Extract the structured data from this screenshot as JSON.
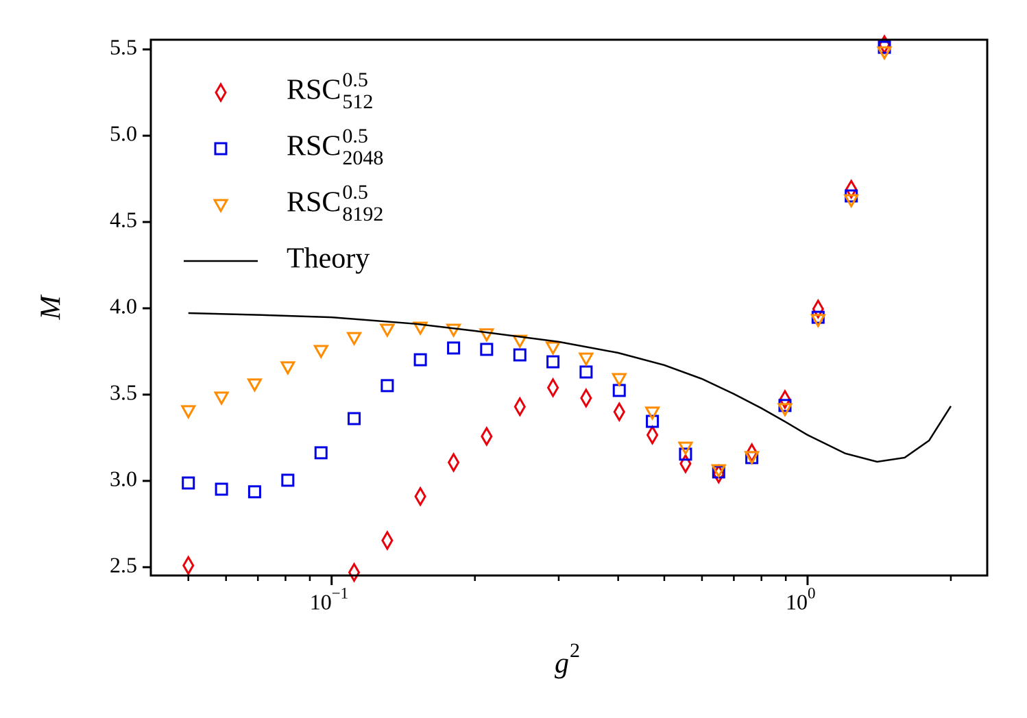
{
  "chart_data": {
    "type": "scatter",
    "x_label": {
      "text": "g",
      "sup": "2"
    },
    "y_label": "M",
    "xscale": "log",
    "xlim": [
      0.0417,
      2.385
    ],
    "ylim": [
      2.452,
      5.556
    ],
    "xticks": [
      {
        "value": 0.1,
        "label": "10",
        "exponent": "−1"
      },
      {
        "value": 1,
        "label": "10",
        "exponent": "0"
      }
    ],
    "xminorticks": [
      0.05,
      0.06,
      0.07,
      0.08,
      0.09,
      0.2,
      0.3,
      0.4,
      0.5,
      0.6,
      0.7,
      0.8,
      0.9,
      2
    ],
    "yticks": [
      2.5,
      {
        "value": 3,
        "label": "3.0"
      },
      3.5,
      {
        "value": 4,
        "label": "4.0"
      },
      4.5,
      {
        "value": 5,
        "label": "5.0"
      },
      5.5
    ],
    "legend": "upper left",
    "x": [
      0.05,
      0.0587,
      0.0689,
      0.0809,
      0.095,
      0.1115,
      0.1309,
      0.1536,
      0.1804,
      0.2117,
      0.2486,
      0.2918,
      0.3425,
      0.4021,
      0.472,
      0.5541,
      0.6505,
      0.7636,
      0.8964,
      1.0523,
      1.2353,
      1.4502
    ],
    "series": [
      {
        "name": "RSC",
        "sup": "0.5",
        "sub": "512",
        "marker": "diamond",
        "color": "#e8000b",
        "values": [
          2.51,
          null,
          null,
          null,
          null,
          2.47,
          2.655,
          2.91,
          3.107,
          3.258,
          3.43,
          3.54,
          3.48,
          3.4,
          3.266,
          3.1,
          3.04,
          3.163,
          3.472,
          3.996,
          4.69,
          5.528
        ]
      },
      {
        "name": "RSC",
        "sup": "0.5",
        "sub": "2048",
        "marker": "square",
        "color": "#0000e6",
        "values": [
          2.988,
          2.952,
          2.937,
          3.004,
          3.163,
          3.361,
          3.552,
          3.702,
          3.77,
          3.762,
          3.73,
          3.69,
          3.631,
          3.524,
          3.345,
          3.155,
          3.052,
          3.135,
          3.437,
          3.948,
          4.651,
          5.512
        ]
      },
      {
        "name": "RSC",
        "sup": "0.5",
        "sub": "8192",
        "marker": "triangle_down",
        "color": "#ff8c00",
        "values": [
          3.405,
          3.484,
          3.56,
          3.659,
          3.754,
          3.829,
          3.877,
          3.889,
          3.877,
          3.85,
          3.813,
          3.774,
          3.71,
          3.591,
          3.397,
          3.194,
          3.063,
          3.139,
          3.417,
          3.933,
          4.627,
          5.484
        ]
      },
      {
        "name": "Theory",
        "marker": "line",
        "color": "#000000",
        "x": [
          0.05,
          0.07,
          0.1,
          0.15,
          0.2,
          0.3,
          0.4,
          0.5,
          0.6,
          0.7,
          0.8,
          0.9,
          1.0,
          1.2,
          1.4,
          1.6,
          1.8,
          2.0
        ],
        "values": [
          3.972,
          3.962,
          3.948,
          3.91,
          3.869,
          3.806,
          3.742,
          3.671,
          3.591,
          3.504,
          3.421,
          3.341,
          3.266,
          3.159,
          3.111,
          3.135,
          3.234,
          3.433
        ]
      }
    ]
  }
}
